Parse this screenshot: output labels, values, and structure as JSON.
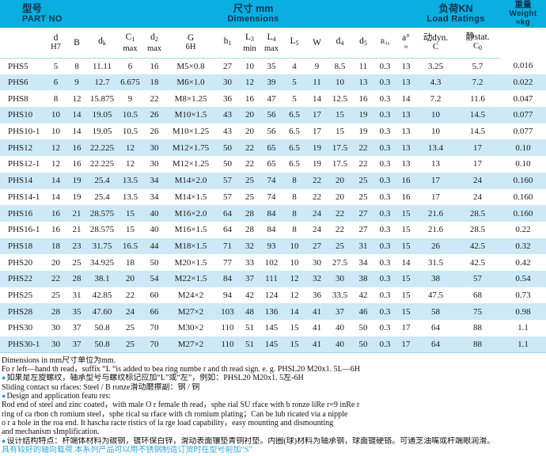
{
  "banner": {
    "part_no_zh": "型号",
    "part_no_en": "PART NO",
    "dims_zh": "尺寸 mm",
    "dims_en": "Dimensions",
    "load_zh": "负荷KN",
    "load_en": "Load Ratings",
    "weight_zh": "重量",
    "weight_en": "Weight",
    "weight_unit": "≈kg"
  },
  "columns": [
    {
      "main": ""
    },
    {
      "main": "d",
      "line2": "H7"
    },
    {
      "main": "B"
    },
    {
      "main": "d",
      "sub": "k"
    },
    {
      "main": "C",
      "sub": "1",
      "line2": "max"
    },
    {
      "main": "d",
      "sub": "2",
      "line2": "max"
    },
    {
      "main": "G",
      "line2": "6H"
    },
    {
      "main": "h",
      "sub": "1"
    },
    {
      "main": "L",
      "sub": "3",
      "line2": "min"
    },
    {
      "main": "L",
      "sub": "4",
      "line2": "max"
    },
    {
      "main": "L",
      "sub": "5"
    },
    {
      "main": "W"
    },
    {
      "main": "d",
      "sub": "4"
    },
    {
      "main": "d",
      "sub": "5"
    },
    {
      "main": "R",
      "sub": "1s"
    },
    {
      "main": "a°",
      "line2": "≈"
    },
    {
      "main": "动dyn.",
      "line2": "C"
    },
    {
      "main": "静stat.",
      "line2": "C",
      "line2sub": "0"
    }
  ],
  "rows": [
    [
      "PHS5",
      "5",
      "8",
      "11.11",
      "6",
      "16",
      "M5×0.8",
      "27",
      "10",
      "35",
      "4",
      "9",
      "8.5",
      "11",
      "0.3",
      "13",
      "3.25",
      "5.7",
      "0.016"
    ],
    [
      "PHS6",
      "6",
      "9",
      "12.7",
      "6.675",
      "18",
      "M6×1.0",
      "30",
      "12",
      "39",
      "5",
      "11",
      "10",
      "13",
      "0.3",
      "13",
      "4.3",
      "7.2",
      "0.022"
    ],
    [
      "PHS8",
      "8",
      "12",
      "15.875",
      "9",
      "22",
      "M8×1.25",
      "36",
      "16",
      "47",
      "5",
      "14",
      "12.5",
      "16",
      "0.3",
      "14",
      "7.2",
      "11.6",
      "0.047"
    ],
    [
      "PHS10",
      "10",
      "14",
      "19.05",
      "10.5",
      "26",
      "M10×1.5",
      "43",
      "20",
      "56",
      "6.5",
      "17",
      "15",
      "19",
      "0.3",
      "13",
      "10",
      "14.5",
      "0.077"
    ],
    [
      "PHS10-1",
      "10",
      "14",
      "19.05",
      "10.5",
      "26",
      "M10×1.25",
      "43",
      "20",
      "56",
      "6.5",
      "17",
      "15",
      "19",
      "0.3",
      "13",
      "10",
      "14.5",
      "0.077"
    ],
    [
      "PHS12",
      "12",
      "16",
      "22.225",
      "12",
      "30",
      "M12×1.75",
      "50",
      "22",
      "65",
      "6.5",
      "19",
      "17.5",
      "22",
      "0.3",
      "13",
      "13.4",
      "17",
      "0.10"
    ],
    [
      "PHS12-1",
      "12",
      "16",
      "22.225",
      "12",
      "30",
      "M12×1.25",
      "50",
      "22",
      "65",
      "6.5",
      "19",
      "17.5",
      "22",
      "0.3",
      "13",
      "13",
      "17",
      "0.10"
    ],
    [
      "PHS14",
      "14",
      "19",
      "25.4",
      "13.5",
      "34",
      "M14×2.0",
      "57",
      "25",
      "74",
      "8",
      "22",
      "20",
      "25",
      "0.3",
      "16",
      "17",
      "24",
      "0.160"
    ],
    [
      "PHS14-1",
      "14",
      "19",
      "25.4",
      "13.5",
      "34",
      "M14×1.5",
      "57",
      "25",
      "74",
      "8",
      "22",
      "20",
      "25",
      "0.3",
      "16",
      "17",
      "24",
      "0.160"
    ],
    [
      "PHS16",
      "16",
      "21",
      "28.575",
      "15",
      "40",
      "M16×2.0",
      "64",
      "28",
      "84",
      "8",
      "24",
      "22",
      "27",
      "0.3",
      "15",
      "21.6",
      "28.5",
      "0.160"
    ],
    [
      "PHS16-1",
      "16",
      "21",
      "28.575",
      "15",
      "40",
      "M16×1.5",
      "64",
      "28",
      "84",
      "8",
      "24",
      "22",
      "27",
      "0.3",
      "15",
      "21.6",
      "28.5",
      "0.22"
    ],
    [
      "PHS18",
      "18",
      "23",
      "31.75",
      "16.5",
      "44",
      "M18×1.5",
      "71",
      "32",
      "93",
      "10",
      "27",
      "25",
      "31",
      "0.3",
      "15",
      "26",
      "42.5",
      "0.32"
    ],
    [
      "PHS20",
      "20",
      "25",
      "34.925",
      "18",
      "50",
      "M20×1.5",
      "77",
      "33",
      "102",
      "10",
      "30",
      "27.5",
      "34",
      "0.3",
      "14",
      "31.5",
      "42.5",
      "0.42"
    ],
    [
      "PHS22",
      "22",
      "28",
      "38.1",
      "20",
      "54",
      "M22×1.5",
      "84",
      "37",
      "111",
      "12",
      "32",
      "30",
      "38",
      "0.3",
      "15",
      "38",
      "57",
      "0.54"
    ],
    [
      "PHS25",
      "25",
      "31",
      "42.85",
      "22",
      "60",
      "M24×2",
      "94",
      "42",
      "124",
      "12",
      "36",
      "33.5",
      "42",
      "0.3",
      "15",
      "47.5",
      "68",
      "0.73"
    ],
    [
      "PHS28",
      "28",
      "35",
      "47.60",
      "24",
      "66",
      "M27×2",
      "103",
      "48",
      "136",
      "14",
      "41",
      "37",
      "46",
      "0.3",
      "15",
      "58",
      "75",
      "0.98"
    ],
    [
      "PHS30",
      "30",
      "37",
      "50.8",
      "25",
      "70",
      "M30×2",
      "110",
      "51",
      "145",
      "15",
      "41",
      "40",
      "50",
      "0.3",
      "17",
      "64",
      "88",
      "1.1"
    ],
    [
      "PHS30-1",
      "30",
      "37",
      "50.8",
      "25",
      "70",
      "M27×2",
      "110",
      "51",
      "145",
      "15",
      "41",
      "40",
      "50",
      "0.3",
      "17",
      "64",
      "88",
      "1.1"
    ]
  ],
  "notes": [
    {
      "text": "Dimensions in mm尺寸单位为mm.",
      "bullet": false,
      "cyan": false
    },
    {
      "text": "Fo r left—hand th read，suffix “L “is added to bea ring numbe r and th read sign.  e.  g.  PHSL20 M20x1.  5L—6H",
      "bullet": false,
      "cyan": false
    },
    {
      "text": "如果是左旋螺纹，轴承型号与螺纹标记应加“L”或“左”，例如：PHSL20 M20x1. 5左-6H",
      "bullet": true,
      "cyan": false
    },
    {
      "text": "Sliding contact su rfaces:  Steel / B ronze滑动磨擦副：钢 / 铜",
      "bullet": false,
      "cyan": false
    },
    {
      "text": "Design and application featu res:",
      "bullet": true,
      "cyan": false
    },
    {
      "text": "Rod end of steel and zinc coated，with male O r female th read，sphe rial SU rface with b ronze liRe r=9 inRe r",
      "bullet": false,
      "cyan": false
    },
    {
      "text": "ring of ca rbon ch romium steel，sphe rical su rface with ch romium plating；Can be lub ricated via a nipple",
      "bullet": false,
      "cyan": false
    },
    {
      "text": "o r a hole in the roa end.  It hascha racte ristics of la rge load capability，easy mounting and dismounting",
      "bullet": false,
      "cyan": false
    },
    {
      "text": "and mechanism sImplification.",
      "bullet": false,
      "cyan": false
    },
    {
      "text": "设计结构特点：杆端体材料为碳钢，镀环保白锌，滑动表面镶垫青铜衬垫。内圈(球)材料为轴承钢，球面镀硬铬。可通芝油嘴或杆端眼润滑。",
      "bullet": true,
      "cyan": false
    },
    {
      "text": "具有较好的轴向载荷.本系列产品可以用不锈钢制造订货时在型号前加“S”",
      "bullet": false,
      "cyan": true
    }
  ]
}
